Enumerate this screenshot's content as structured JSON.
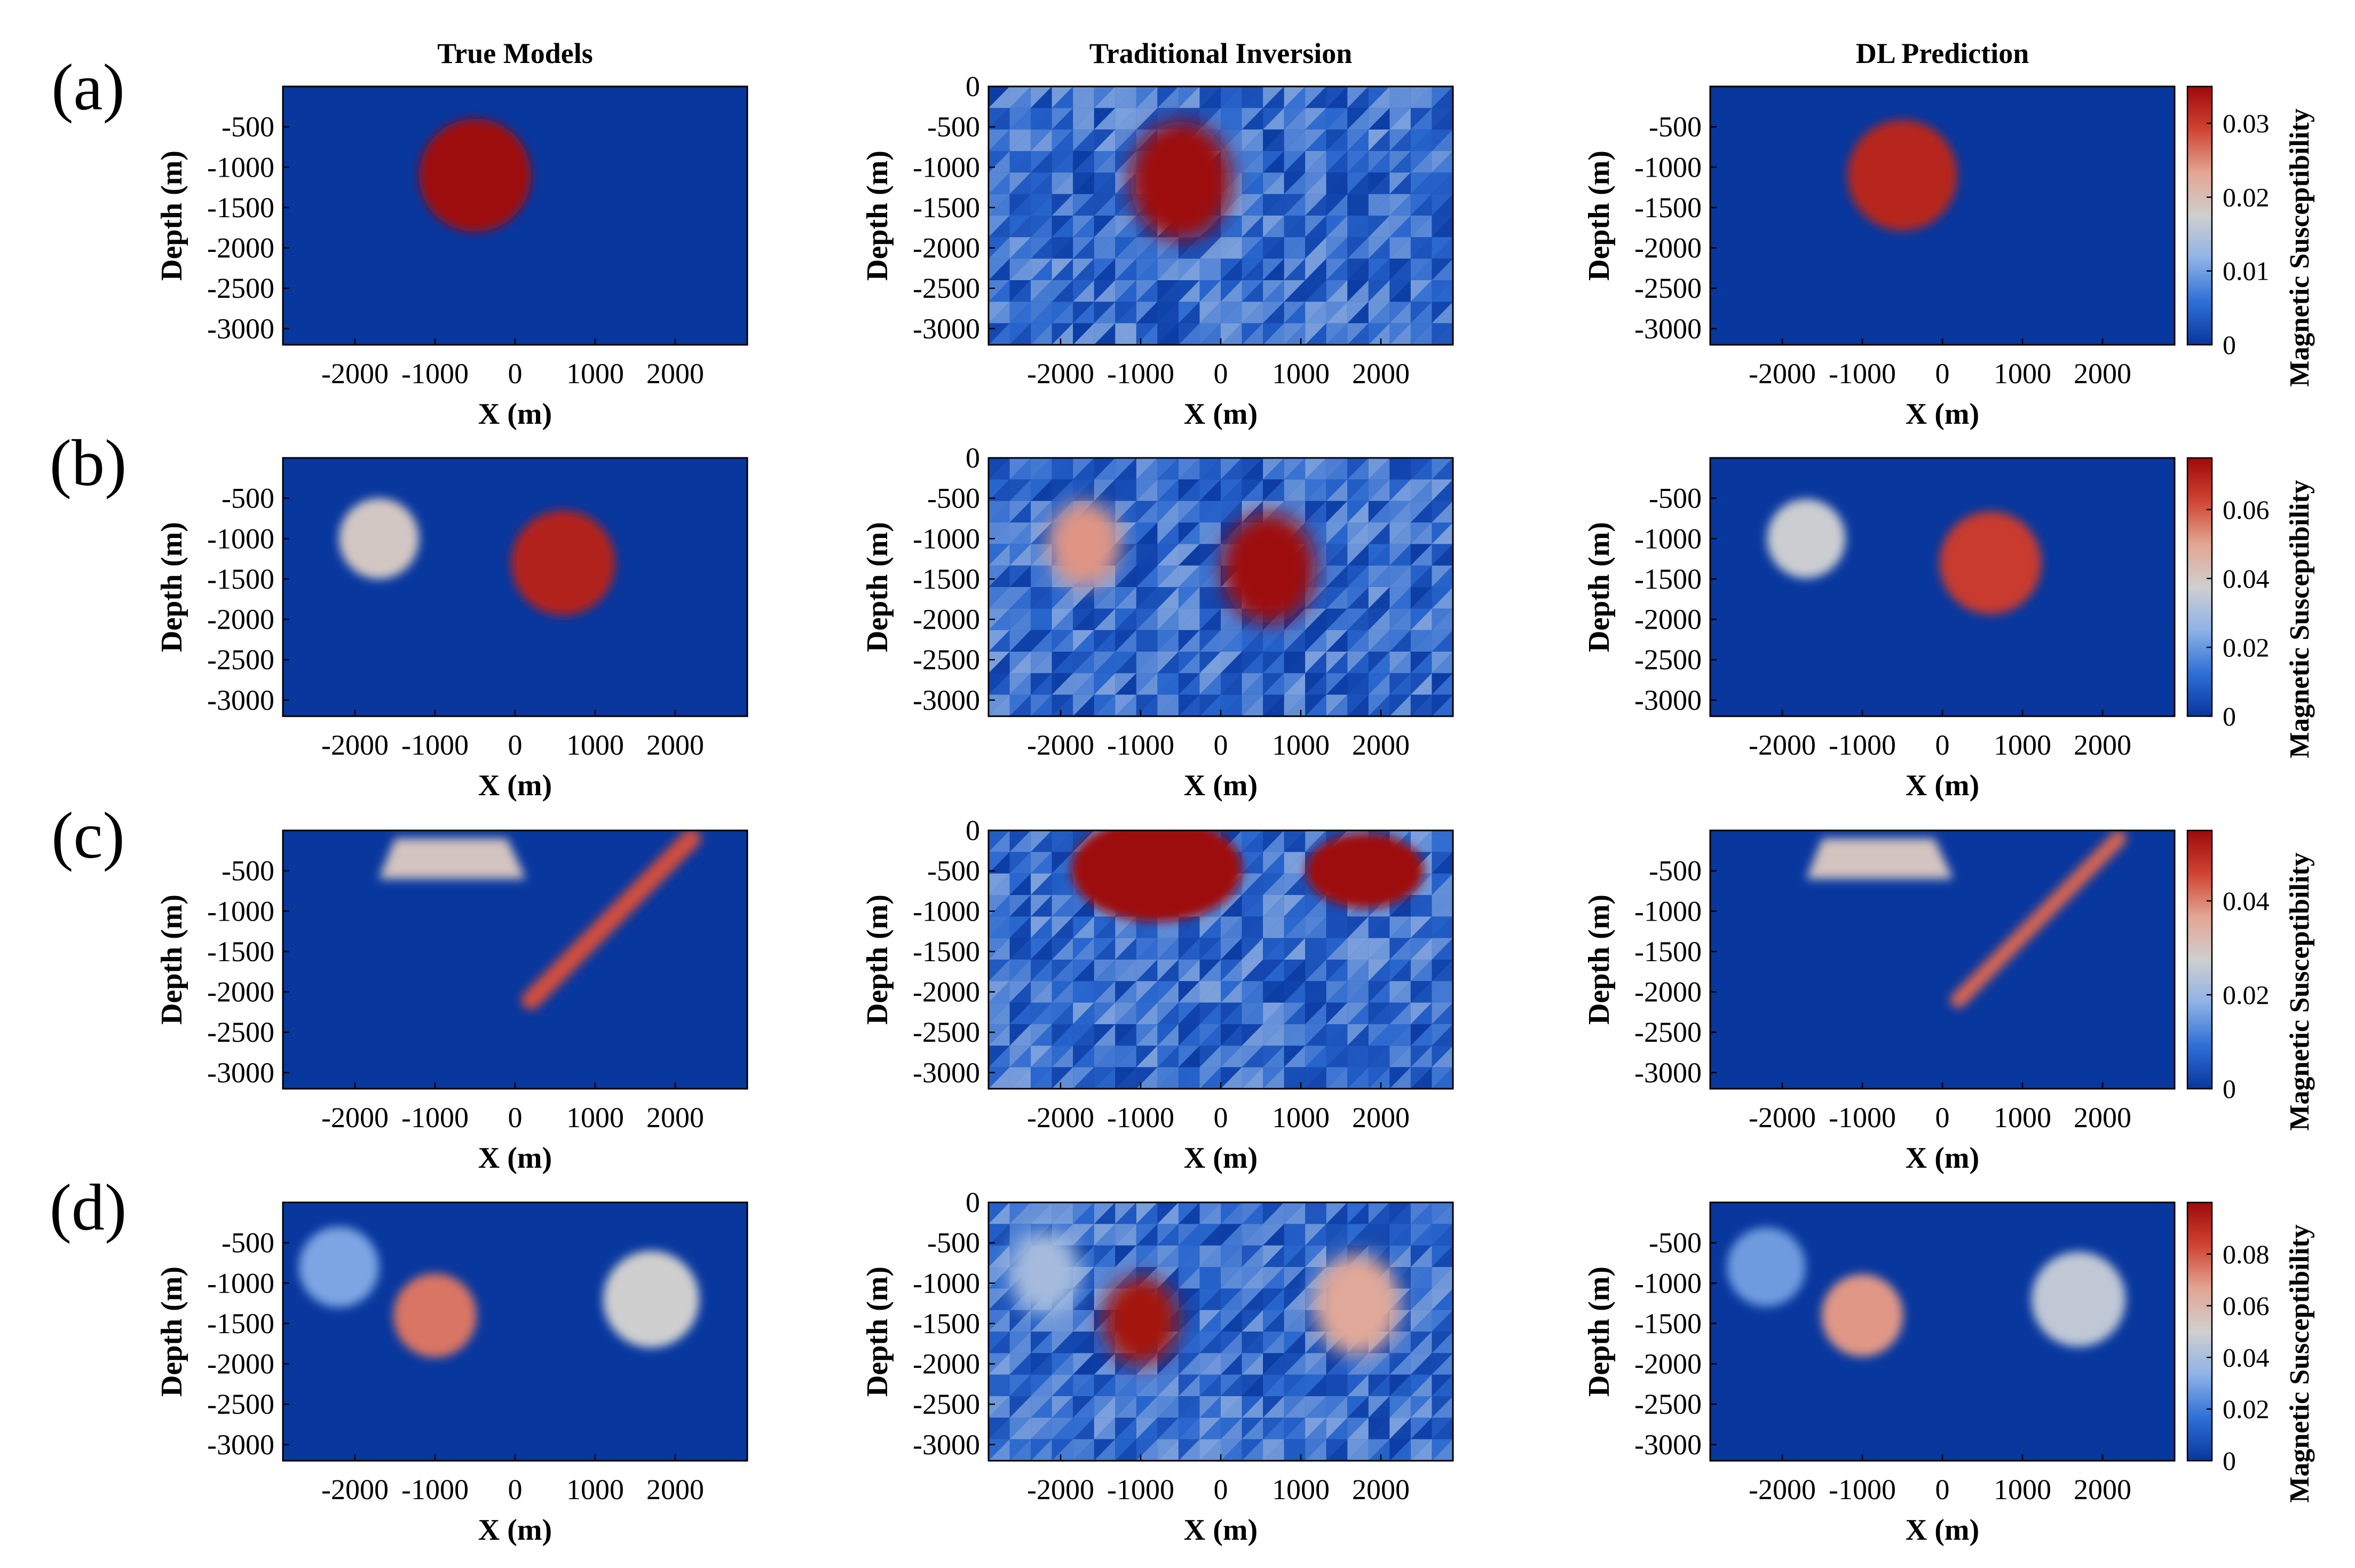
{
  "chart_data": {
    "type": "heatmap",
    "columns": [
      "True Models",
      "Traditional Inversion",
      "DL Prediction"
    ],
    "row_labels": [
      "(a)",
      "(b)",
      "(c)",
      "(d)"
    ],
    "xlabel": "X (m)",
    "ylabel": "Depth (m)",
    "colorbar_label": "Magnetic Susceptibility",
    "xlim": [
      -2900,
      2900
    ],
    "ylim": [
      -3200,
      0
    ],
    "x_ticks": [
      -2000,
      -1000,
      0,
      1000,
      2000
    ],
    "x_tick_labels": [
      "-2000",
      "-1000",
      "0",
      "1000",
      "2000"
    ],
    "y_ticks": [
      -500,
      -1000,
      -1500,
      -2000,
      -2500,
      -3000
    ],
    "y_tick_labels": [
      "-500",
      "-1000",
      "-1500",
      "-2000",
      "-2500",
      "-3000"
    ],
    "y_tick_labels_inversion": [
      "0",
      "-500",
      "-1000",
      "-1500",
      "-2000",
      "-2500",
      "-3000"
    ],
    "colormap": [
      "#08379e",
      "#2f6fd6",
      "#8fb2e6",
      "#cfcfcf",
      "#e3a593",
      "#cf4433",
      "#9e0a0a"
    ],
    "rows": [
      {
        "label": "(a)",
        "clim": [
          0,
          0.035
        ],
        "colorbar_ticks": [
          0,
          0.01,
          0.02,
          0.03
        ],
        "colorbar_tick_labels": [
          "0",
          "0.01",
          "0.02",
          "0.03"
        ],
        "true_bodies": [
          {
            "x": -500,
            "y": -1100,
            "radius": 700,
            "value": 0.035
          }
        ]
      },
      {
        "label": "(b)",
        "clim": [
          0,
          0.075
        ],
        "colorbar_ticks": [
          0,
          0.02,
          0.04,
          0.06
        ],
        "colorbar_tick_labels": [
          "0",
          "0.02",
          "0.04",
          "0.06"
        ],
        "true_bodies": [
          {
            "x": -1700,
            "y": -1000,
            "radius": 500,
            "value": 0.04
          },
          {
            "x": 600,
            "y": -1300,
            "radius": 650,
            "value": 0.07
          }
        ]
      },
      {
        "label": "(c)",
        "clim": [
          0,
          0.055
        ],
        "colorbar_ticks": [
          0,
          0.02,
          0.04
        ],
        "colorbar_tick_labels": [
          "0",
          "0.02",
          "0.04"
        ],
        "true_bodies": [
          {
            "shape": "block",
            "x_from": -1600,
            "x_to": 0,
            "depth_from": -100,
            "depth_to": -600,
            "value": 0.03
          },
          {
            "shape": "dike",
            "x_top": 2200,
            "depth_top": -100,
            "x_bottom": 200,
            "depth_bottom": -2100,
            "value": 0.045
          }
        ]
      },
      {
        "label": "(d)",
        "clim": [
          0,
          0.1
        ],
        "colorbar_ticks": [
          0,
          0.02,
          0.04,
          0.06,
          0.08
        ],
        "colorbar_tick_labels": [
          "0",
          "0.02",
          "0.04",
          "0.06",
          "0.08"
        ],
        "true_bodies": [
          {
            "x": -2200,
            "y": -800,
            "radius": 500,
            "value": 0.03
          },
          {
            "x": -1000,
            "y": -1400,
            "radius": 520,
            "value": 0.075
          },
          {
            "x": 1700,
            "y": -1200,
            "radius": 600,
            "value": 0.05
          }
        ]
      }
    ]
  }
}
